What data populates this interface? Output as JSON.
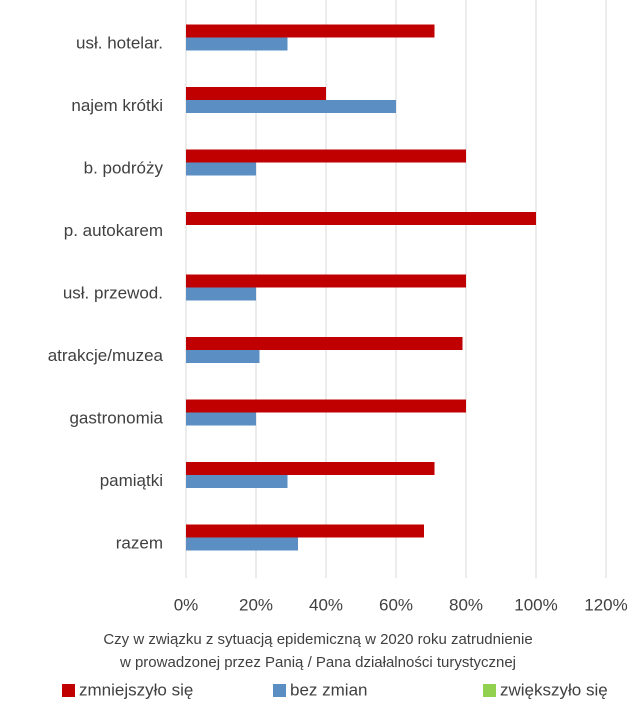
{
  "chart_data": {
    "type": "barh",
    "categories": [
      "usł. hotelar.",
      "najem krótki",
      "b. podróży",
      "p. autokarem",
      "usł. przewod.",
      "atrakcje/muzea",
      "gastronomia",
      "pamiątki",
      "razem"
    ],
    "series": [
      {
        "name": "zmniejszyło się",
        "color": "#c00000",
        "values": [
          71,
          40,
          80,
          100,
          80,
          79,
          80,
          71,
          68
        ]
      },
      {
        "name": "bez zmian",
        "color": "#5b8fc4",
        "values": [
          29,
          60,
          20,
          0,
          20,
          21,
          20,
          29,
          32
        ]
      },
      {
        "name": "zwiększyło się",
        "color": "#92d050",
        "values": [
          0,
          0,
          0,
          0,
          0,
          0,
          0,
          0,
          0
        ]
      }
    ],
    "xlim": [
      0,
      120
    ],
    "xticks": [
      {
        "value": 0,
        "label": "0%"
      },
      {
        "value": 20,
        "label": "20%"
      },
      {
        "value": 40,
        "label": "40%"
      },
      {
        "value": 60,
        "label": "60%"
      },
      {
        "value": 80,
        "label": "80%"
      },
      {
        "value": 100,
        "label": "100%"
      },
      {
        "value": 120,
        "label": "120%"
      }
    ],
    "xlabel": [
      "Czy w związku z sytuacją epidemiczną w 2020 roku zatrudnienie",
      "w prowadzonej przez Panią / Pana działalności turystycznej"
    ],
    "grid": true,
    "legend": "bottom"
  }
}
